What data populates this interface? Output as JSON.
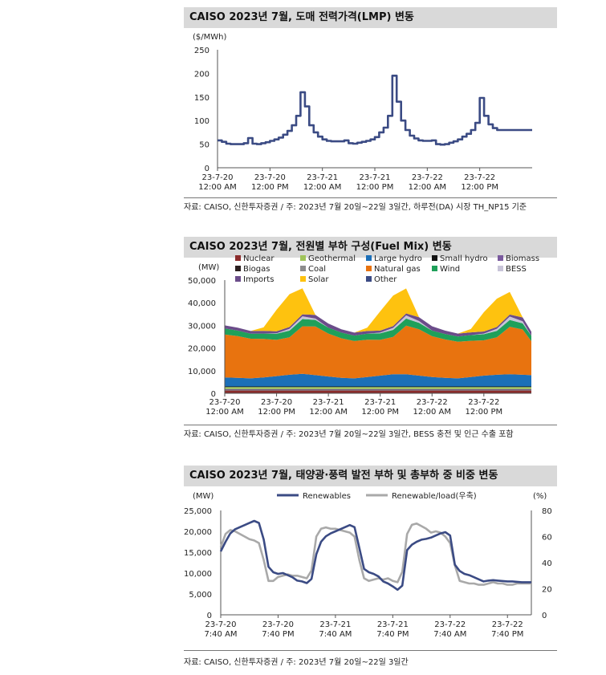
{
  "charts": [
    {
      "title": "CAISO 2023년 7월, 도매 전력가격(LMP) 변동",
      "source": "자료: CAISO, 신한투자증권 / 주: 2023년 7월 20일~22일 3일간, 하루전(DA) 시장 TH_NP15 기준"
    },
    {
      "title": "CAISO 2023년 7월, 전원별 부하 구성(Fuel Mix) 변동",
      "source": "자료: CAISO, 신한투자증권 / 주: 2023년 7월 20일~22일 3일간, BESS 충전 및 인근 수출 포함"
    },
    {
      "title": "CAISO 2023년 7월, 태양광·풍력 발전 부하 및 총부하 중 비중 변동",
      "source": "자료: CAISO, 신한투자증권 / 주: 2023년 7월 20일~22일 3일간"
    }
  ],
  "colors": {
    "navy": "#3b4b84",
    "gray": "#a9a9a9",
    "Nuclear": "#8b2c2c",
    "Geothermal": "#a0c45a",
    "Large hydro": "#1c6fb8",
    "Small hydro": "#111111",
    "Biomass": "#7a5a9e",
    "Biogas": "#2b1f1f",
    "Coal": "#8c8c8c",
    "Natural gas": "#e8730f",
    "Wind": "#1fa05a",
    "BESS": "#c8c4d8",
    "Imports": "#6b4c8a",
    "Solar": "#fec20f",
    "Other": "#3b4b84"
  },
  "chart_data": [
    {
      "type": "line",
      "title": "CAISO 2023년 7월, 도매 전력가격(LMP) 변동",
      "ylabel": "($/MWh)",
      "ylim": [
        0,
        250
      ],
      "yticks": [
        0,
        50,
        100,
        150,
        200,
        250
      ],
      "xticks": [
        {
          "line1": "23-7-20",
          "line2": "12:00 AM"
        },
        {
          "line1": "23-7-20",
          "line2": "12:00 PM"
        },
        {
          "line1": "23-7-21",
          "line2": "12:00 AM"
        },
        {
          "line1": "23-7-21",
          "line2": "12:00 PM"
        },
        {
          "line1": "23-7-22",
          "line2": "12:00 AM"
        },
        {
          "line1": "23-7-22",
          "line2": "12:00 PM"
        }
      ],
      "x_hours": [
        0,
        1,
        2,
        3,
        4,
        5,
        6,
        7,
        8,
        9,
        10,
        11,
        12,
        13,
        14,
        15,
        16,
        17,
        18,
        19,
        20,
        21,
        22,
        23,
        24,
        25,
        26,
        27,
        28,
        29,
        30,
        31,
        32,
        33,
        34,
        35,
        36,
        37,
        38,
        39,
        40,
        41,
        42,
        43,
        44,
        45,
        46,
        47,
        48,
        49,
        50,
        51,
        52,
        53,
        54,
        55,
        56,
        57,
        58,
        59,
        60,
        61,
        62,
        63,
        64,
        65,
        66,
        67,
        68,
        69,
        70,
        71
      ],
      "series": [
        {
          "name": "LMP",
          "values": [
            58,
            55,
            51,
            50,
            50,
            50,
            52,
            63,
            51,
            50,
            52,
            54,
            57,
            60,
            64,
            70,
            78,
            90,
            110,
            160,
            130,
            90,
            75,
            66,
            60,
            57,
            56,
            56,
            56,
            58,
            52,
            51,
            53,
            55,
            57,
            60,
            65,
            75,
            85,
            110,
            195,
            140,
            100,
            80,
            68,
            62,
            58,
            57,
            57,
            58,
            50,
            49,
            50,
            53,
            56,
            60,
            66,
            72,
            80,
            95,
            148,
            110,
            92,
            84,
            80,
            80,
            80,
            80,
            80,
            80,
            80,
            80
          ]
        }
      ]
    },
    {
      "type": "area",
      "title": "CAISO 2023년 7월, 전원별 부하 구성(Fuel Mix) 변동",
      "ylabel": "(MW)",
      "ylim": [
        0,
        50000
      ],
      "yticks": [
        0,
        10000,
        20000,
        30000,
        40000,
        50000
      ],
      "xticks": [
        {
          "line1": "23-7-20",
          "line2": "12:00 AM"
        },
        {
          "line1": "23-7-20",
          "line2": "12:00 PM"
        },
        {
          "line1": "23-7-21",
          "line2": "12:00 AM"
        },
        {
          "line1": "23-7-21",
          "line2": "12:00 PM"
        },
        {
          "line1": "23-7-22",
          "line2": "12:00 AM"
        },
        {
          "line1": "23-7-22",
          "line2": "12:00 PM"
        }
      ],
      "legend": [
        "Nuclear",
        "Geothermal",
        "Large hydro",
        "Small hydro",
        "Biomass",
        "Biogas",
        "Coal",
        "Natural gas",
        "Wind",
        "BESS",
        "Imports",
        "Solar",
        "Other"
      ],
      "x_hours": [
        0,
        3,
        6,
        9,
        12,
        15,
        18,
        21,
        24,
        27,
        30,
        33,
        36,
        39,
        42,
        45,
        48,
        51,
        54,
        57,
        60,
        63,
        66,
        69,
        71
      ],
      "series": [
        {
          "name": "Nuclear",
          "values": [
            1200,
            1200,
            1200,
            1200,
            1200,
            1200,
            1200,
            1200,
            1200,
            1200,
            1200,
            1200,
            1200,
            1200,
            1200,
            1200,
            1200,
            1200,
            1200,
            1200,
            1200,
            1200,
            1200,
            1200,
            1200
          ]
        },
        {
          "name": "Coal",
          "values": [
            150,
            150,
            150,
            150,
            150,
            150,
            150,
            150,
            150,
            150,
            150,
            150,
            150,
            150,
            150,
            150,
            150,
            150,
            150,
            150,
            150,
            150,
            150,
            150,
            150
          ]
        },
        {
          "name": "Biogas",
          "values": [
            200,
            200,
            200,
            200,
            200,
            200,
            200,
            200,
            200,
            200,
            200,
            200,
            200,
            200,
            200,
            200,
            200,
            200,
            200,
            200,
            200,
            200,
            200,
            200,
            200
          ]
        },
        {
          "name": "Biomass",
          "values": [
            300,
            300,
            300,
            300,
            300,
            300,
            300,
            300,
            300,
            300,
            300,
            300,
            300,
            300,
            300,
            300,
            300,
            300,
            300,
            300,
            300,
            300,
            300,
            300,
            300
          ]
        },
        {
          "name": "Geothermal",
          "values": [
            900,
            900,
            900,
            900,
            900,
            900,
            900,
            900,
            900,
            900,
            900,
            900,
            900,
            900,
            900,
            900,
            900,
            900,
            900,
            900,
            900,
            900,
            900,
            900,
            900
          ]
        },
        {
          "name": "Small hydro",
          "values": [
            250,
            250,
            250,
            250,
            250,
            250,
            250,
            250,
            250,
            250,
            250,
            250,
            250,
            250,
            250,
            250,
            250,
            250,
            250,
            250,
            250,
            250,
            250,
            250,
            250
          ]
        },
        {
          "name": "Large hydro",
          "values": [
            4000,
            3800,
            3600,
            4000,
            4600,
            5200,
            5600,
            5000,
            4400,
            3800,
            3600,
            4200,
            4800,
            5400,
            5400,
            4800,
            4200,
            3800,
            3600,
            4200,
            4800,
            5200,
            5400,
            5200,
            5000
          ]
        },
        {
          "name": "Natural gas",
          "values": [
            19000,
            18500,
            17500,
            17000,
            16000,
            16500,
            21000,
            21500,
            19000,
            17500,
            16500,
            16500,
            15800,
            16500,
            21500,
            20500,
            18000,
            17000,
            16200,
            16000,
            15600,
            16500,
            21000,
            20000,
            15000
          ]
        },
        {
          "name": "Wind",
          "values": [
            2600,
            2400,
            2200,
            2400,
            2700,
            3000,
            3200,
            2900,
            2600,
            2500,
            2400,
            2600,
            2900,
            3100,
            3100,
            2800,
            2500,
            2400,
            2300,
            2500,
            2700,
            2900,
            3000,
            2700,
            2400
          ]
        },
        {
          "name": "BESS",
          "values": [
            0,
            0,
            0,
            0,
            200,
            800,
            1200,
            600,
            0,
            0,
            0,
            0,
            300,
            900,
            1400,
            800,
            0,
            0,
            0,
            0,
            300,
            900,
            1500,
            900,
            0
          ]
        },
        {
          "name": "Imports",
          "values": [
            1400,
            1300,
            1200,
            1200,
            900,
            800,
            900,
            1600,
            1800,
            1500,
            1300,
            1200,
            900,
            800,
            900,
            1700,
            1900,
            1500,
            1300,
            1200,
            900,
            800,
            900,
            1700,
            1800
          ]
        },
        {
          "name": "Solar",
          "values": [
            0,
            0,
            0,
            1500,
            9500,
            14500,
            11500,
            0,
            0,
            0,
            0,
            1500,
            8500,
            13500,
            11000,
            0,
            0,
            0,
            0,
            1500,
            8500,
            12500,
            10000,
            0,
            0
          ]
        },
        {
          "name": "Other",
          "values": [
            0,
            0,
            0,
            0,
            0,
            0,
            0,
            0,
            0,
            0,
            0,
            0,
            0,
            0,
            0,
            0,
            0,
            0,
            0,
            0,
            0,
            0,
            0,
            0,
            0
          ]
        }
      ]
    },
    {
      "type": "line",
      "title": "CAISO 2023년 7월, 태양광·풍력 발전 부하 및 총부하 중 비중 변동",
      "ylabel": "(MW)",
      "y2label": "(%)",
      "ylim": [
        0,
        25000
      ],
      "y2lim": [
        0,
        80
      ],
      "yticks": [
        0,
        5000,
        10000,
        15000,
        20000,
        25000
      ],
      "y2ticks": [
        0,
        20,
        40,
        60,
        80
      ],
      "xticks": [
        {
          "line1": "23-7-20",
          "line2": "7:40 AM"
        },
        {
          "line1": "23-7-20",
          "line2": "7:40 PM"
        },
        {
          "line1": "23-7-21",
          "line2": "7:40 AM"
        },
        {
          "line1": "23-7-21",
          "line2": "7:40 PM"
        },
        {
          "line1": "23-7-22",
          "line2": "7:40 AM"
        },
        {
          "line1": "23-7-22",
          "line2": "7:40 PM"
        }
      ],
      "x_hours": [
        0,
        1,
        2,
        3,
        4,
        5,
        6,
        7,
        8,
        9,
        10,
        11,
        12,
        13,
        14,
        15,
        16,
        17,
        18,
        19,
        20,
        21,
        22,
        23,
        24,
        25,
        26,
        27,
        28,
        29,
        30,
        31,
        32,
        33,
        34,
        35,
        36,
        37,
        38,
        39,
        40,
        41,
        42,
        43,
        44,
        45,
        46,
        47,
        48,
        49,
        50,
        51,
        52,
        53,
        54,
        55,
        56,
        57,
        58,
        59,
        60,
        61,
        62,
        63,
        64,
        65
      ],
      "series": [
        {
          "name": "Renewables",
          "axis": "left",
          "values": [
            15200,
            17500,
            19500,
            20500,
            21000,
            21500,
            22000,
            22500,
            22000,
            18000,
            11500,
            10200,
            9800,
            10000,
            9500,
            9000,
            8200,
            8000,
            7600,
            8600,
            14500,
            17500,
            18800,
            19500,
            20000,
            20500,
            21000,
            21500,
            21000,
            16000,
            11000,
            10200,
            9800,
            9200,
            8000,
            7500,
            6800,
            6000,
            7000,
            15500,
            16800,
            17500,
            18000,
            18200,
            18500,
            19000,
            19500,
            19800,
            19000,
            12000,
            10500,
            9800,
            9500,
            9000,
            8500,
            8000,
            8200,
            8300,
            8200,
            8100,
            8000,
            8000,
            7900,
            7800,
            7800,
            7800
          ]
        },
        {
          "name": "Renewable/load(우축)",
          "axis": "right",
          "values": [
            52,
            62,
            65,
            64,
            62,
            60,
            58,
            57,
            55,
            42,
            26,
            26,
            29,
            30,
            31,
            30,
            30,
            29,
            28,
            34,
            60,
            66,
            67,
            66,
            66,
            65,
            64,
            63,
            60,
            42,
            28,
            26,
            27,
            28,
            27,
            28,
            26,
            25,
            33,
            62,
            69,
            70,
            68,
            66,
            63,
            64,
            63,
            60,
            55,
            38,
            26,
            25,
            24,
            24,
            23,
            23,
            24,
            25,
            24,
            24,
            23,
            23,
            24,
            24,
            24,
            24
          ]
        }
      ]
    }
  ]
}
